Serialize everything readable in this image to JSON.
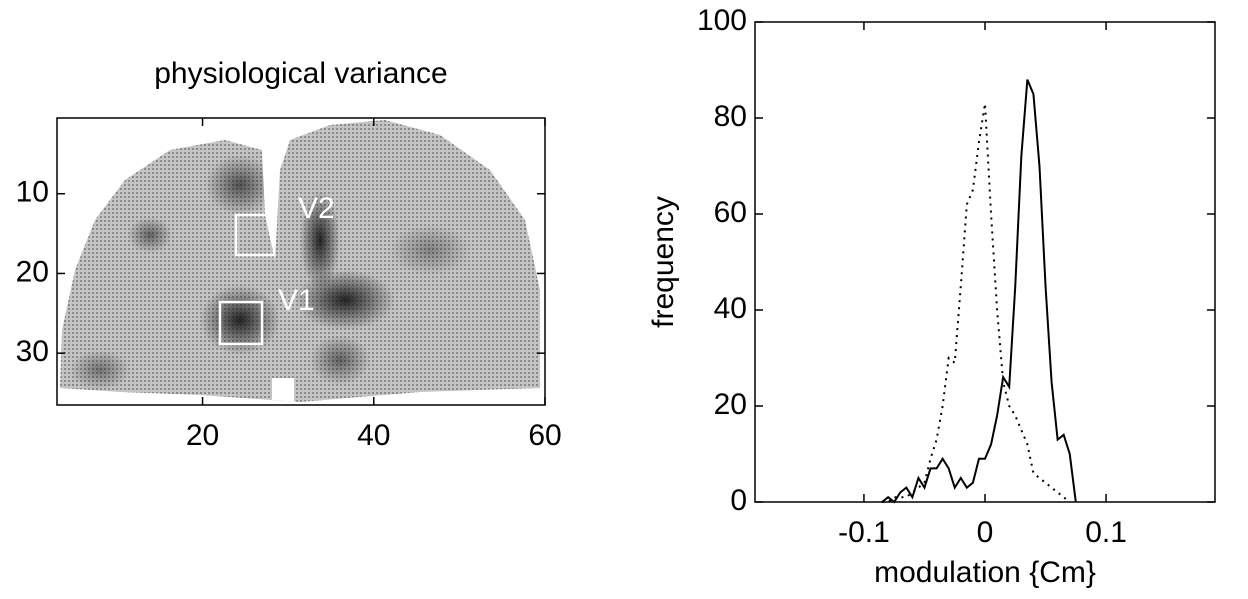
{
  "chart_data": [
    {
      "type": "image",
      "title": "physiological variance",
      "xlim": [
        3,
        60
      ],
      "xticks": [
        20,
        40,
        60
      ],
      "ylim": [
        0.5,
        36.5
      ],
      "yticks": [
        10,
        20,
        30
      ],
      "y_reversed": true,
      "annotations": [
        "V2",
        "V1"
      ]
    },
    {
      "type": "line",
      "xlabel": "modulation {Cm}",
      "ylabel": "frequency",
      "xlim": [
        -0.19,
        0.19
      ],
      "xticks": [
        -0.1,
        0,
        0.1
      ],
      "ylim": [
        0,
        100
      ],
      "yticks": [
        0,
        20,
        40,
        60,
        80,
        100
      ],
      "x": [
        -0.085,
        -0.08,
        -0.075,
        -0.07,
        -0.065,
        -0.06,
        -0.055,
        -0.05,
        -0.045,
        -0.04,
        -0.035,
        -0.03,
        -0.025,
        -0.02,
        -0.015,
        -0.01,
        -0.005,
        0,
        0.005,
        0.01,
        0.015,
        0.02,
        0.025,
        0.03,
        0.035,
        0.04,
        0.045,
        0.05,
        0.055,
        0.06,
        0.065,
        0.07,
        0.075
      ],
      "series": [
        {
          "color": "#000000",
          "style": "solid",
          "values": [
            0,
            1,
            0,
            2,
            3,
            1,
            5,
            3,
            7,
            7,
            9,
            7,
            3,
            5,
            3,
            4,
            9,
            9,
            12,
            18,
            26,
            24,
            45,
            72,
            88,
            85,
            70,
            45,
            25,
            13,
            14,
            10,
            0
          ]
        },
        {
          "color": "#000000",
          "style": "dotted",
          "values": [
            0,
            0,
            1,
            1,
            1,
            2,
            3,
            4,
            9,
            13,
            20,
            30,
            29,
            45,
            62,
            65,
            75,
            83,
            60,
            40,
            25,
            20,
            18,
            15,
            12,
            6,
            5,
            4,
            3,
            2,
            1,
            0,
            null
          ]
        }
      ]
    }
  ]
}
